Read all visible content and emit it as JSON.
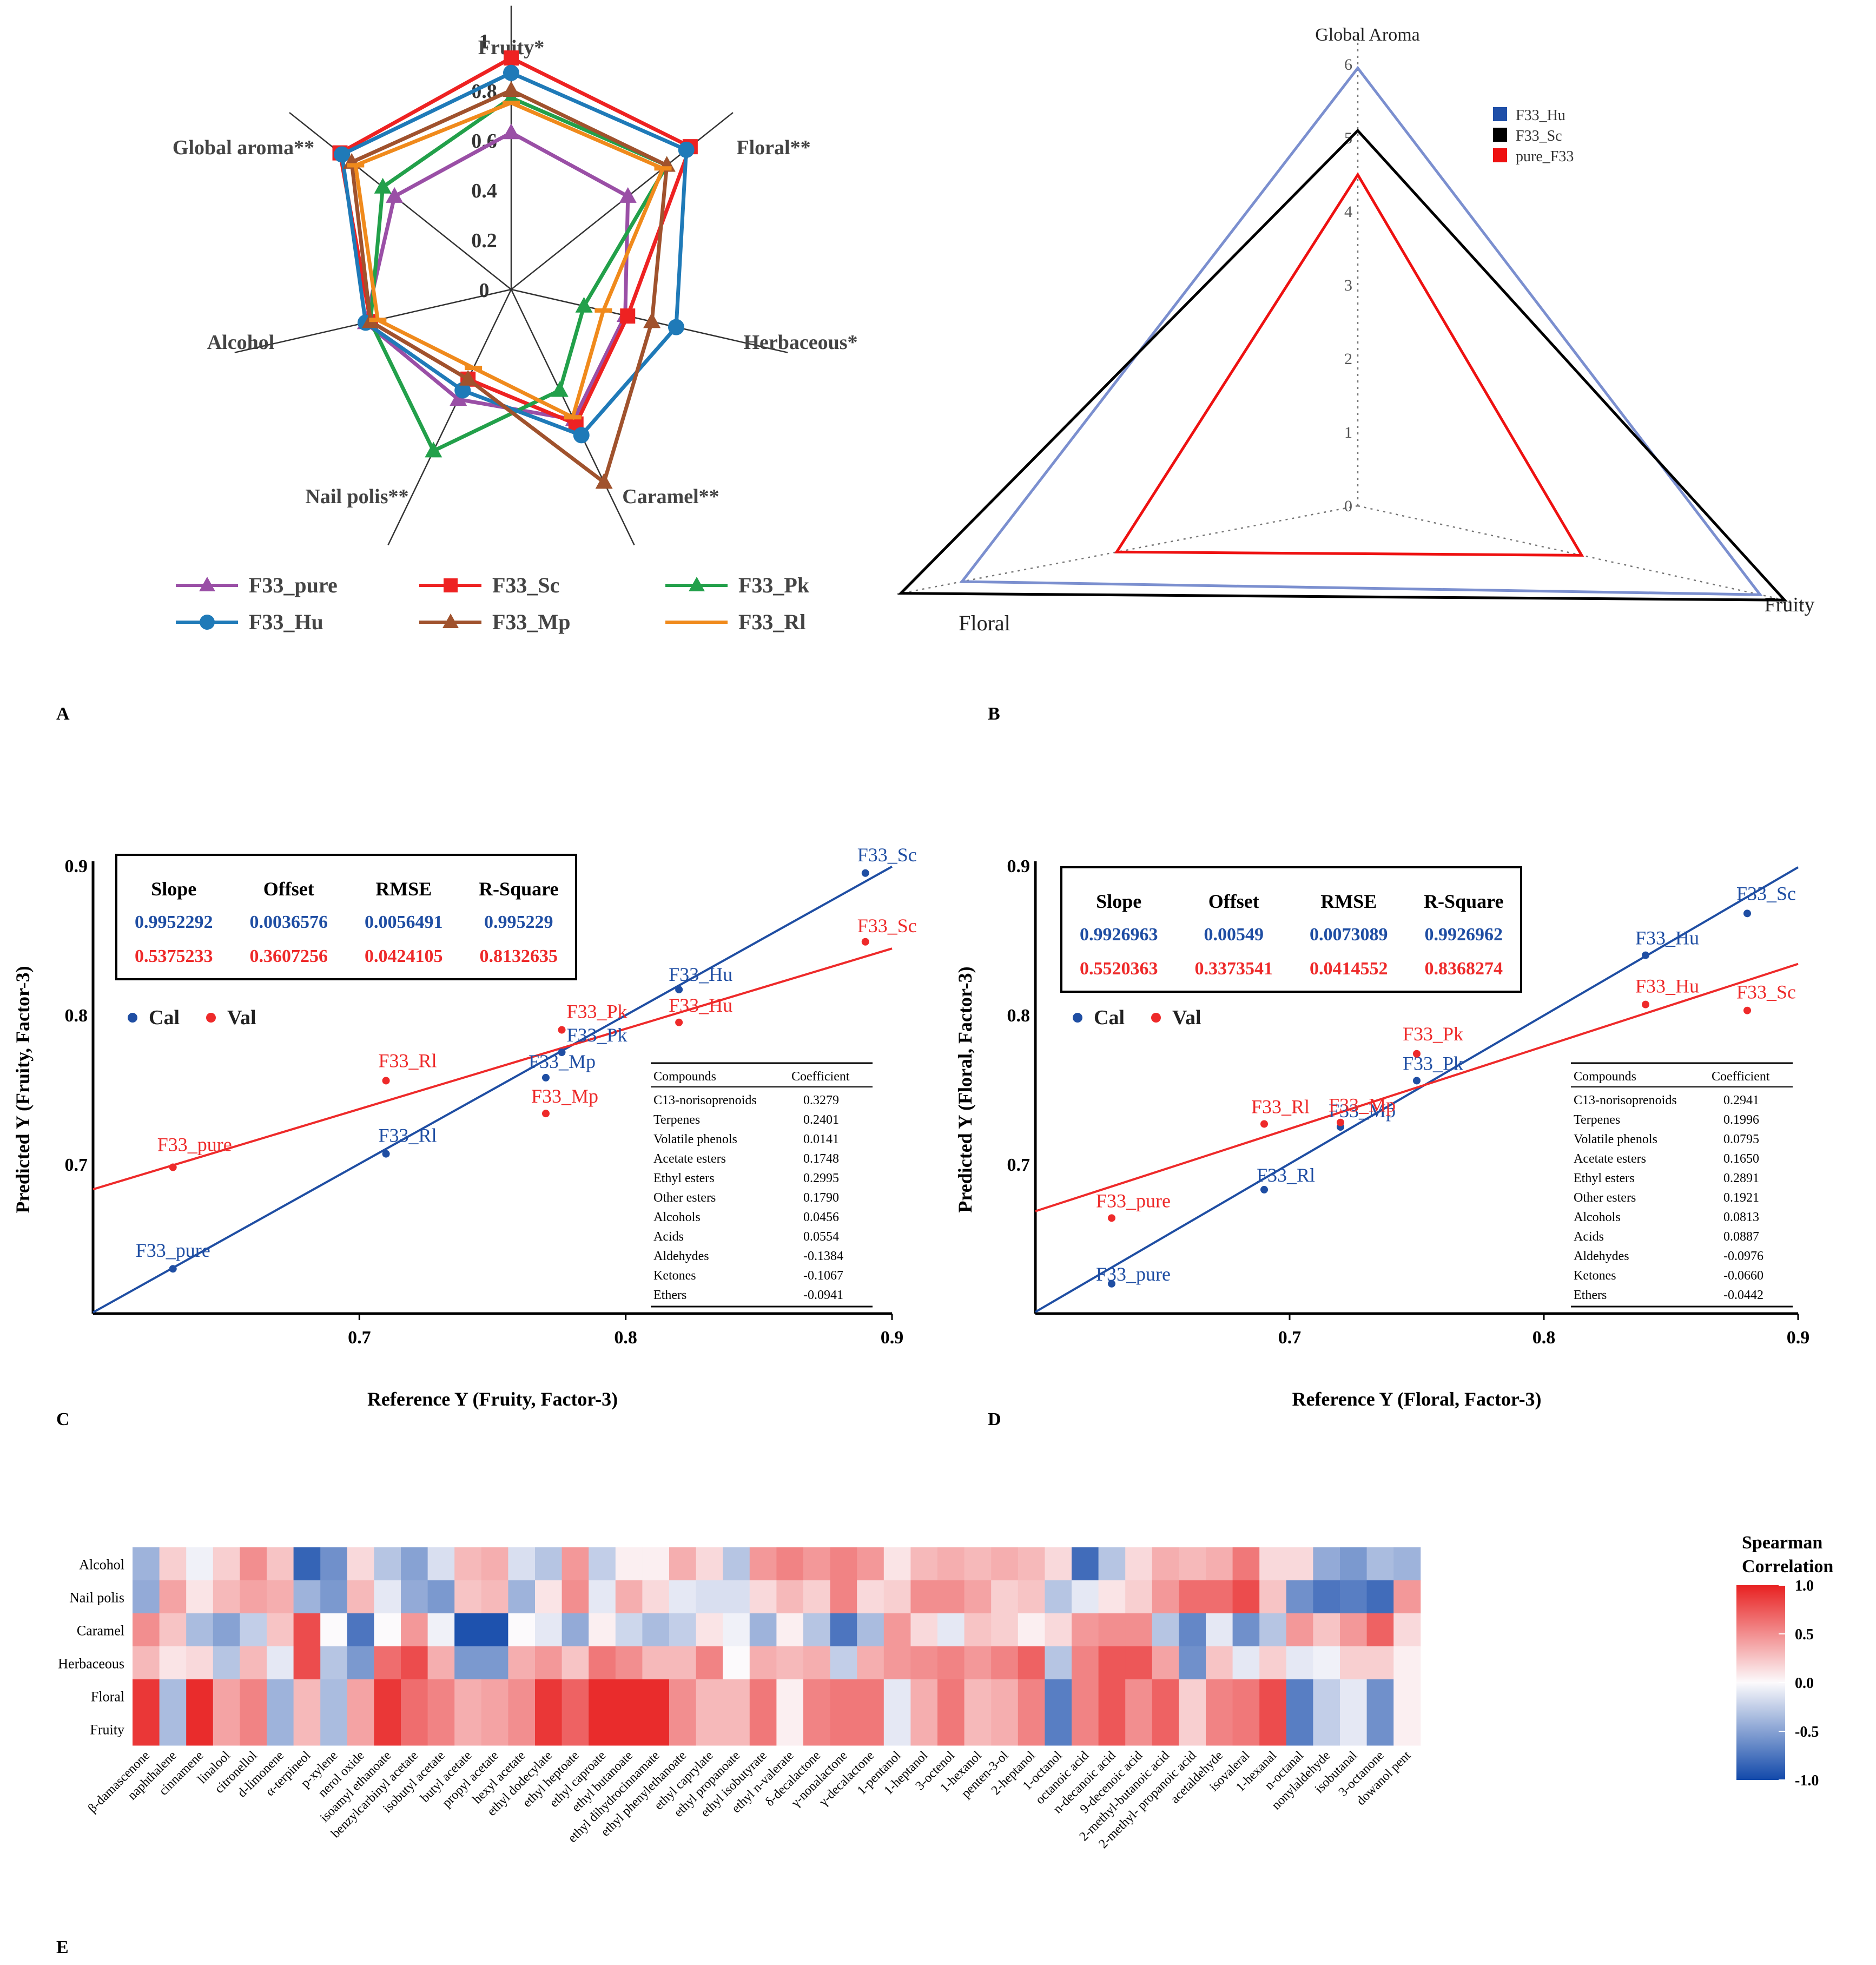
{
  "panels": {
    "A": "A",
    "B": "B",
    "C": "C",
    "D": "D",
    "E": "E"
  },
  "chart_data": [
    {
      "id": "A",
      "type": "radar",
      "axes": [
        "Fruity*",
        "Floral**",
        "Herbaceous*",
        "Caramel**",
        "Nail polis**",
        "Alcohol",
        "Global aroma**"
      ],
      "ticks": [
        "1",
        "0.8",
        "0.6",
        "0.4",
        "0.2",
        "0"
      ],
      "range": [
        0,
        1
      ],
      "series": [
        {
          "name": "F33_pure",
          "color": "#9a4fa6",
          "marker": "triangle",
          "values": [
            0.63,
            0.6,
            0.47,
            0.58,
            0.49,
            0.6,
            0.6
          ]
        },
        {
          "name": "F33_Sc",
          "color": "#ee2222",
          "marker": "square",
          "values": [
            0.93,
            0.92,
            0.48,
            0.6,
            0.4,
            0.58,
            0.88
          ]
        },
        {
          "name": "F33_Pk",
          "color": "#22a04a",
          "marker": "triangle",
          "values": [
            0.77,
            0.8,
            0.3,
            0.45,
            0.72,
            0.58,
            0.66
          ]
        },
        {
          "name": "F33_Hu",
          "color": "#1f7ab8",
          "marker": "circle",
          "values": [
            0.87,
            0.9,
            0.68,
            0.65,
            0.45,
            0.6,
            0.87
          ]
        },
        {
          "name": "F33_Mp",
          "color": "#a0522d",
          "marker": "triangle",
          "values": [
            0.8,
            0.8,
            0.58,
            0.86,
            0.4,
            0.58,
            0.82
          ]
        },
        {
          "name": "F33_Rl",
          "color": "#f08a1c",
          "marker": "dash",
          "values": [
            0.75,
            0.78,
            0.38,
            0.57,
            0.35,
            0.55,
            0.8
          ]
        }
      ]
    },
    {
      "id": "B",
      "type": "radar",
      "axes": [
        "Global Aroma",
        "Fruity",
        "Floral"
      ],
      "ticks": [
        "0",
        "1",
        "2",
        "3",
        "4",
        "5",
        "6"
      ],
      "range": [
        0,
        6
      ],
      "series": [
        {
          "name": "F33_Hu",
          "color": "#7b8fcf",
          "legend_color": "#1f4fa8",
          "values": [
            5.95,
            5.75,
            5.5
          ]
        },
        {
          "name": "F33_Sc",
          "color": "#000000",
          "legend_color": "#000000",
          "values": [
            5.1,
            6.1,
            6.35
          ]
        },
        {
          "name": "pure_F33",
          "color": "#ee1111",
          "legend_color": "#ee1111",
          "values": [
            4.5,
            3.2,
            3.35
          ]
        }
      ]
    },
    {
      "id": "C",
      "type": "scatter",
      "xlabel": "Reference Y (Fruity, Factor-3)",
      "ylabel": "Predicted Y (Fruity, Factor-3)",
      "xlim": [
        0.6,
        0.9
      ],
      "ylim": [
        0.6,
        0.9
      ],
      "xticks": [
        "0.7",
        "0.8",
        "0.9"
      ],
      "yticks": [
        "0.7",
        "0.8",
        "0.9"
      ],
      "stats_headers": [
        "Slope",
        "Offset",
        "RMSE",
        "R-Square"
      ],
      "cal_stats": [
        "0.9952292",
        "0.0036576",
        "0.0056491",
        "0.995229"
      ],
      "val_stats": [
        "0.5375233",
        "0.3607256",
        "0.0424105",
        "0.8132635"
      ],
      "legend": {
        "cal": "Cal",
        "val": "Val"
      },
      "cal_points": [
        {
          "label": "F33_pure",
          "x": 0.63,
          "y": 0.63
        },
        {
          "label": "F33_Rl",
          "x": 0.71,
          "y": 0.707
        },
        {
          "label": "F33_Mp",
          "x": 0.77,
          "y": 0.758
        },
        {
          "label": "F33_Pk",
          "x": 0.776,
          "y": 0.775
        },
        {
          "label": "F33_Hu",
          "x": 0.82,
          "y": 0.817
        },
        {
          "label": "F33_Sc",
          "x": 0.89,
          "y": 0.895
        }
      ],
      "val_points": [
        {
          "label": "F33_pure",
          "x": 0.63,
          "y": 0.698
        },
        {
          "label": "F33_Rl",
          "x": 0.71,
          "y": 0.756
        },
        {
          "label": "F33_Mp",
          "x": 0.77,
          "y": 0.734
        },
        {
          "label": "F33_Pk",
          "x": 0.776,
          "y": 0.79
        },
        {
          "label": "F33_Hu",
          "x": 0.82,
          "y": 0.795
        },
        {
          "label": "F33_Sc",
          "x": 0.89,
          "y": 0.849
        }
      ],
      "cal_line": {
        "slope": 0.9952292,
        "offset": 0.0036576
      },
      "val_line": {
        "slope": 0.5375233,
        "offset": 0.3607256
      },
      "table_headers": [
        "Compounds",
        "Coefficient"
      ],
      "table": [
        [
          "C13-norisoprenoids",
          "0.3279"
        ],
        [
          "Terpenes",
          "0.2401"
        ],
        [
          "Volatile phenols",
          "0.0141"
        ],
        [
          "Acetate esters",
          "0.1748"
        ],
        [
          "Ethyl esters",
          "0.2995"
        ],
        [
          "Other esters",
          "0.1790"
        ],
        [
          "Alcohols",
          "0.0456"
        ],
        [
          "Acids",
          "0.0554"
        ],
        [
          "Aldehydes",
          "-0.1384"
        ],
        [
          "Ketones",
          "-0.1067"
        ],
        [
          "Ethers",
          "-0.0941"
        ]
      ]
    },
    {
      "id": "D",
      "type": "scatter",
      "xlabel": "Reference Y (Floral, Factor-3)",
      "ylabel": "Predicted Y (Floral, Factor-3)",
      "xlim": [
        0.6,
        0.9
      ],
      "ylim": [
        0.6,
        0.9
      ],
      "xticks": [
        "0.7",
        "0.8",
        "0.9"
      ],
      "yticks": [
        "0.7",
        "0.8",
        "0.9"
      ],
      "stats_headers": [
        "Slope",
        "Offset",
        "RMSE",
        "R-Square"
      ],
      "cal_stats": [
        "0.9926963",
        "0.00549",
        "0.0073089",
        "0.9926962"
      ],
      "val_stats": [
        "0.5520363",
        "0.3373541",
        "0.0414552",
        "0.8368274"
      ],
      "legend": {
        "cal": "Cal",
        "val": "Val"
      },
      "cal_points": [
        {
          "label": "F33_pure",
          "x": 0.63,
          "y": 0.62
        },
        {
          "label": "F33_Rl",
          "x": 0.69,
          "y": 0.683
        },
        {
          "label": "F33_Mp",
          "x": 0.72,
          "y": 0.725
        },
        {
          "label": "F33_Pk",
          "x": 0.75,
          "y": 0.756
        },
        {
          "label": "F33_Hu",
          "x": 0.84,
          "y": 0.84
        },
        {
          "label": "F33_Sc",
          "x": 0.88,
          "y": 0.868
        }
      ],
      "val_points": [
        {
          "label": "F33_pure",
          "x": 0.63,
          "y": 0.664
        },
        {
          "label": "F33_Rl",
          "x": 0.69,
          "y": 0.727
        },
        {
          "label": "F33_Mp",
          "x": 0.72,
          "y": 0.728
        },
        {
          "label": "F33_Pk",
          "x": 0.75,
          "y": 0.774
        },
        {
          "label": "F33_Hu",
          "x": 0.84,
          "y": 0.807
        },
        {
          "label": "F33_Sc",
          "x": 0.88,
          "y": 0.803
        }
      ],
      "cal_line": {
        "slope": 0.9926963,
        "offset": 0.00549
      },
      "val_line": {
        "slope": 0.5520363,
        "offset": 0.3373541
      },
      "table_headers": [
        "Compounds",
        "Coefficient"
      ],
      "table": [
        [
          "C13-norisoprenoids",
          "0.2941"
        ],
        [
          "Terpenes",
          "0.1996"
        ],
        [
          "Volatile phenols",
          "0.0795"
        ],
        [
          "Acetate esters",
          "0.1650"
        ],
        [
          "Ethyl esters",
          "0.2891"
        ],
        [
          "Other esters",
          "0.1921"
        ],
        [
          "Alcohols",
          "0.0813"
        ],
        [
          "Acids",
          "0.0887"
        ],
        [
          "Aldehydes",
          "-0.0976"
        ],
        [
          "Ketones",
          "-0.0660"
        ],
        [
          "Ethers",
          "-0.0442"
        ]
      ]
    },
    {
      "id": "E",
      "type": "heatmap",
      "colorbar_title": [
        "Spearman",
        "Correlation"
      ],
      "colorbar_ticks": [
        "1.0",
        "0.5",
        "0.0",
        "-0.5",
        "-1.0"
      ],
      "range": [
        -1,
        1
      ],
      "rows": [
        "Alcohol",
        "Nail polis",
        "Caramel",
        "Herbaceous",
        "Floral",
        "Fruity"
      ],
      "columns": [
        "β-damascenone",
        "naphthalene",
        "cinnamene",
        "linalool",
        "citronellol",
        "d-limonene",
        "α-terpineol",
        "p-xylene",
        "nerol oxide",
        "isoamyl ethanoate",
        "benzylcarbinyl acetate",
        "isobutyl acetate",
        "butyl acetate",
        "propyl acetate",
        "hexyl acetate",
        "ethyl dodecylate",
        "ethyl heptoate",
        "ethyl caproate",
        "ethyl butanoate",
        "ethyl dihydrocinnamate",
        "ethyl phenylethanoate",
        "ethyl caprylate",
        "ethyl propanoate",
        "ethyl isobutyrate",
        "ethyl n-valerate",
        "δ-decalactone",
        "γ-nonalactone",
        "γ-decalactone",
        "1-pentanol",
        "1-heptanol",
        "3-octenol",
        "1-hexanol",
        "penten-3-ol",
        "2-heptanol",
        "1-octanol",
        "octanoic acid",
        "n-decanoic acid",
        "9-decenoic acid",
        "2-methyl-butanoic acid",
        "2-methyl- propanoic acid",
        "acetaldehyde",
        "isovaleral",
        "1-hexanal",
        "n-octanal",
        "nonylaldehyde",
        "isobutanal",
        "3-octanone",
        "dowanol pent"
      ],
      "values": [
        [
          -0.4,
          0.2,
          -0.05,
          0.2,
          0.5,
          0.25,
          -0.85,
          -0.6,
          0.15,
          -0.3,
          -0.5,
          -0.15,
          0.3,
          0.35,
          -0.15,
          -0.3,
          0.45,
          -0.25,
          0.05,
          0.05,
          0.35,
          0.15,
          -0.3,
          0.45,
          0.55,
          0.45,
          0.55,
          0.45,
          0.1,
          0.3,
          0.35,
          0.3,
          0.35,
          0.3,
          0.15,
          -0.8,
          -0.3,
          0.15,
          0.35,
          0.3,
          0.35,
          0.6,
          0.15,
          0.15,
          -0.45,
          -0.55,
          -0.35,
          -0.4
        ],
        [
          -0.45,
          0.4,
          0.1,
          0.3,
          0.4,
          0.35,
          -0.4,
          -0.55,
          0.3,
          -0.1,
          -0.45,
          -0.55,
          0.25,
          0.3,
          -0.4,
          0.1,
          0.5,
          -0.1,
          0.35,
          0.15,
          -0.1,
          -0.15,
          -0.15,
          0.15,
          0.3,
          0.2,
          0.55,
          0.15,
          0.2,
          0.5,
          0.5,
          0.4,
          0.2,
          0.25,
          -0.3,
          -0.1,
          0.1,
          0.2,
          0.45,
          0.65,
          0.65,
          0.8,
          0.25,
          -0.6,
          -0.75,
          -0.7,
          -0.8,
          0.45
        ],
        [
          0.5,
          0.25,
          -0.35,
          -0.5,
          -0.25,
          0.25,
          0.8,
          0.0,
          -0.75,
          0.0,
          0.45,
          -0.05,
          -0.95,
          -0.95,
          0.0,
          -0.1,
          -0.45,
          0.05,
          -0.2,
          -0.35,
          -0.25,
          0.1,
          -0.05,
          -0.4,
          0.05,
          -0.3,
          -0.75,
          -0.35,
          0.45,
          0.15,
          -0.1,
          0.25,
          0.2,
          0.05,
          0.15,
          0.45,
          0.5,
          0.5,
          -0.3,
          -0.65,
          -0.1,
          -0.6,
          -0.3,
          0.45,
          0.25,
          0.45,
          0.7,
          0.15
        ],
        [
          0.3,
          0.1,
          0.15,
          -0.3,
          0.3,
          -0.1,
          0.8,
          -0.3,
          -0.55,
          0.65,
          0.8,
          0.35,
          -0.55,
          -0.55,
          0.35,
          0.45,
          0.25,
          0.6,
          0.5,
          0.3,
          0.3,
          0.55,
          0.0,
          0.35,
          0.3,
          0.35,
          -0.25,
          0.35,
          0.45,
          0.5,
          0.55,
          0.45,
          0.55,
          0.7,
          -0.3,
          0.55,
          0.75,
          0.75,
          0.4,
          -0.6,
          0.25,
          -0.1,
          0.2,
          -0.1,
          -0.05,
          0.2,
          0.2,
          0.05
        ],
        [
          0.9,
          -0.35,
          0.95,
          0.4,
          0.55,
          -0.4,
          0.3,
          -0.35,
          0.4,
          0.9,
          0.65,
          0.55,
          0.35,
          0.4,
          0.5,
          0.9,
          0.7,
          0.95,
          0.95,
          0.95,
          0.5,
          0.3,
          0.3,
          0.6,
          0.05,
          0.55,
          0.6,
          0.6,
          -0.1,
          0.35,
          0.6,
          0.3,
          0.35,
          0.55,
          -0.7,
          0.55,
          0.75,
          0.5,
          0.7,
          0.2,
          0.55,
          0.6,
          0.8,
          -0.7,
          -0.25,
          -0.1,
          -0.6,
          0.05
        ],
        [
          0.9,
          -0.35,
          0.95,
          0.4,
          0.55,
          -0.4,
          0.3,
          -0.35,
          0.4,
          0.9,
          0.65,
          0.55,
          0.35,
          0.4,
          0.5,
          0.9,
          0.7,
          0.95,
          0.95,
          0.95,
          0.5,
          0.3,
          0.3,
          0.6,
          0.05,
          0.55,
          0.6,
          0.6,
          -0.1,
          0.35,
          0.6,
          0.3,
          0.35,
          0.55,
          -0.7,
          0.55,
          0.75,
          0.5,
          0.7,
          0.2,
          0.55,
          0.6,
          0.8,
          -0.7,
          -0.25,
          -0.1,
          -0.6,
          0.05
        ]
      ]
    }
  ]
}
